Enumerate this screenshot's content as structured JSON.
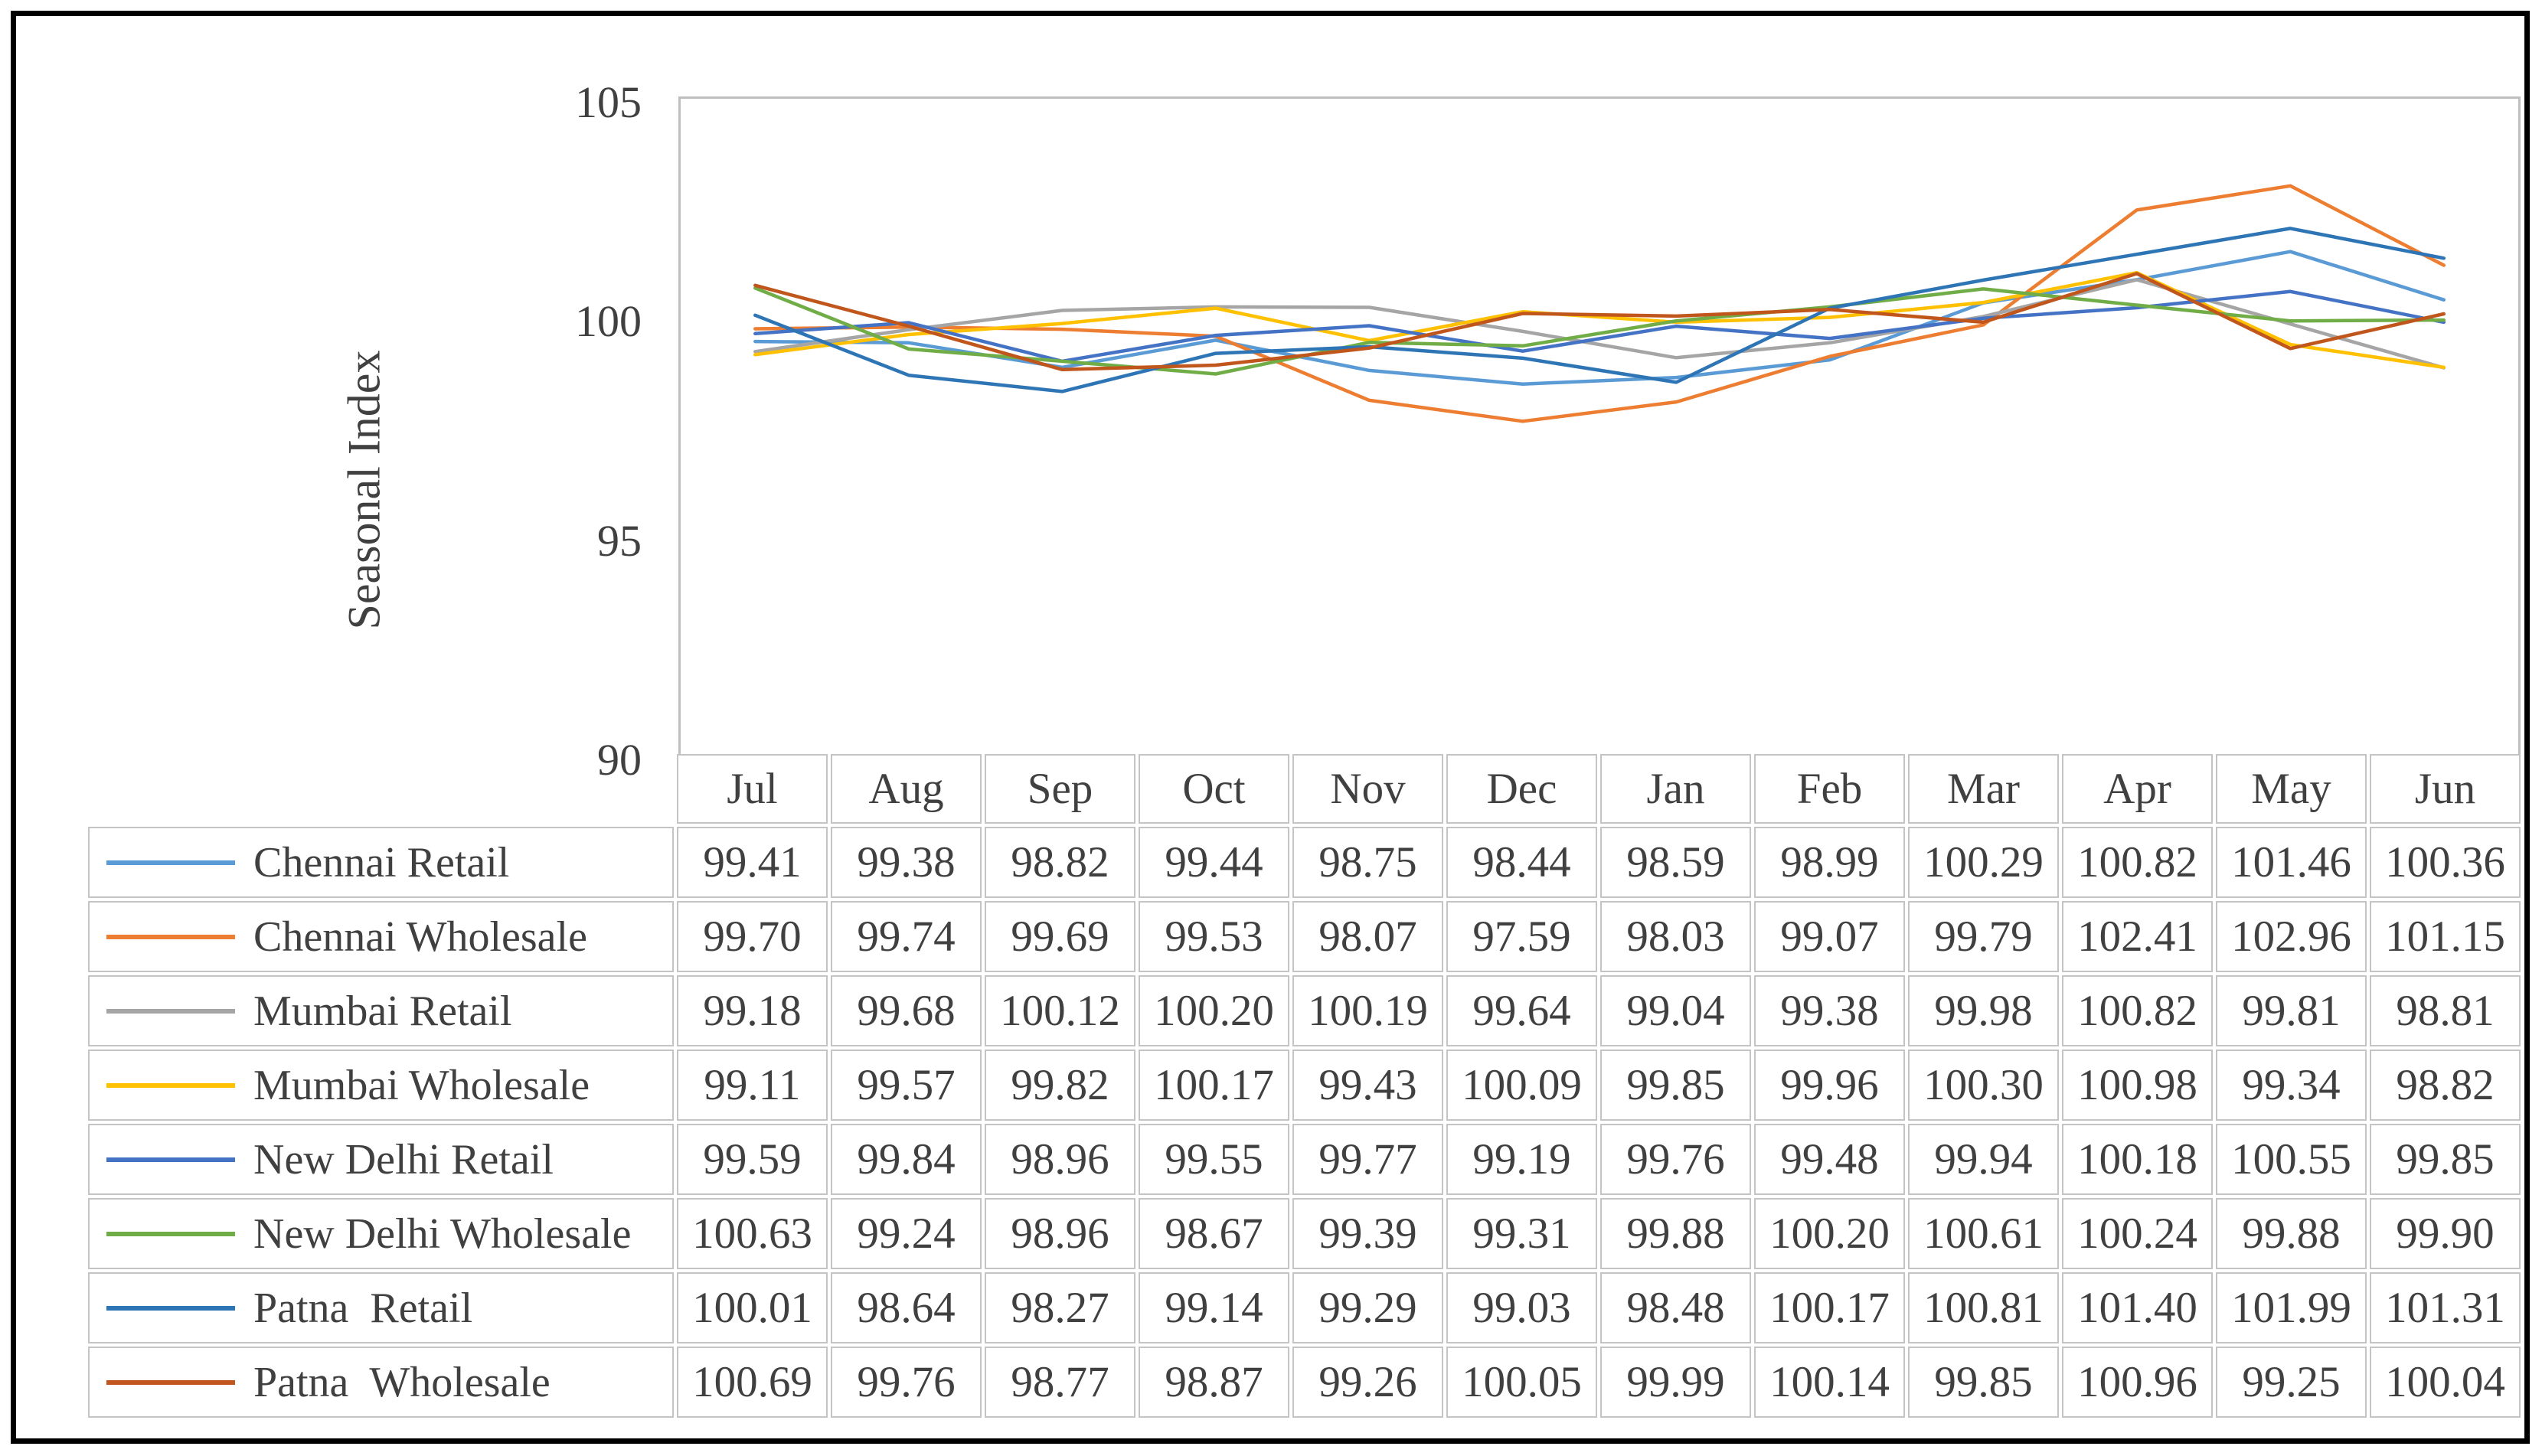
{
  "figure": {
    "y_axis_title": "Seasonal Index"
  },
  "chart_data": {
    "type": "line",
    "title": "",
    "xlabel": "",
    "ylabel": "Seasonal Index",
    "ylim": [
      90,
      105
    ],
    "yticks": [
      105,
      100,
      95,
      90
    ],
    "grid": false,
    "legend_position": "table-left",
    "categories": [
      "Jul",
      "Aug",
      "Sep",
      "Oct",
      "Nov",
      "Dec",
      "Jan",
      "Feb",
      "Mar",
      "Apr",
      "May",
      "Jun"
    ],
    "series": [
      {
        "name": "Chennai Retail",
        "color": "#5B9BD5",
        "values": [
          99.41,
          99.38,
          98.82,
          99.44,
          98.75,
          98.44,
          98.59,
          98.99,
          100.29,
          100.82,
          101.46,
          100.36
        ]
      },
      {
        "name": "Chennai Wholesale",
        "color": "#ED7D31",
        "values": [
          99.7,
          99.74,
          99.69,
          99.53,
          98.07,
          97.59,
          98.03,
          99.07,
          99.79,
          102.41,
          102.96,
          101.15
        ]
      },
      {
        "name": "Mumbai Retail",
        "color": "#A5A5A5",
        "values": [
          99.18,
          99.68,
          100.12,
          100.2,
          100.19,
          99.64,
          99.04,
          99.38,
          99.98,
          100.82,
          99.81,
          98.81
        ]
      },
      {
        "name": "Mumbai Wholesale",
        "color": "#FFC000",
        "values": [
          99.11,
          99.57,
          99.82,
          100.17,
          99.43,
          100.09,
          99.85,
          99.96,
          100.3,
          100.98,
          99.34,
          98.82
        ]
      },
      {
        "name": "New Delhi Retail",
        "color": "#4472C4",
        "values": [
          99.59,
          99.84,
          98.96,
          99.55,
          99.77,
          99.19,
          99.76,
          99.48,
          99.94,
          100.18,
          100.55,
          99.85
        ]
      },
      {
        "name": "New Delhi Wholesale",
        "color": "#70AD47",
        "values": [
          100.63,
          99.24,
          98.96,
          98.67,
          99.39,
          99.31,
          99.88,
          100.2,
          100.61,
          100.24,
          99.88,
          99.9
        ]
      },
      {
        "name": "Patna  Retail",
        "color": "#2E75B6",
        "values": [
          100.01,
          98.64,
          98.27,
          99.14,
          99.29,
          99.03,
          98.48,
          100.17,
          100.81,
          101.4,
          101.99,
          101.31
        ]
      },
      {
        "name": "Patna  Wholesale",
        "color": "#C0561B",
        "values": [
          100.69,
          99.76,
          98.77,
          98.87,
          99.26,
          100.05,
          99.99,
          100.14,
          99.85,
          100.96,
          99.25,
          100.04
        ]
      }
    ]
  }
}
